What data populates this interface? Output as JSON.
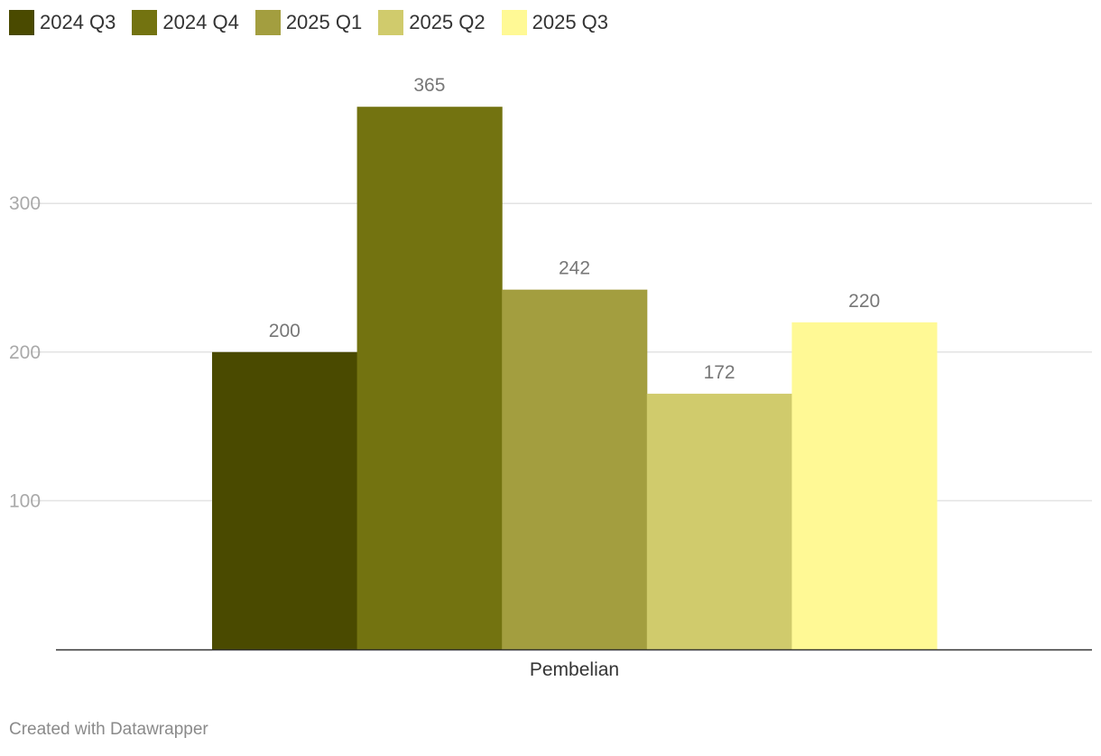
{
  "chart_data": {
    "type": "bar",
    "categories": [
      "Pembelian"
    ],
    "series": [
      {
        "name": "2024 Q3",
        "values": [
          200
        ],
        "color": "#4a4a00"
      },
      {
        "name": "2024 Q4",
        "values": [
          365
        ],
        "color": "#737310"
      },
      {
        "name": "2025 Q1",
        "values": [
          242
        ],
        "color": "#a39e3f"
      },
      {
        "name": "2025 Q2",
        "values": [
          172
        ],
        "color": "#d0cb6c"
      },
      {
        "name": "2025 Q3",
        "values": [
          220
        ],
        "color": "#fff995"
      }
    ],
    "yticks": [
      100,
      200,
      300
    ],
    "ylim": [
      0,
      400
    ],
    "grid": true,
    "legend_position": "top-left",
    "title": "",
    "xlabel": "",
    "ylabel": ""
  },
  "footer": {
    "credit": "Created with Datawrapper"
  },
  "colors": {
    "gridline": "#e3e3e3",
    "axis": "#333333",
    "tick_label": "#a9a9a9",
    "value_label": "#777777",
    "category_label": "#333333"
  }
}
